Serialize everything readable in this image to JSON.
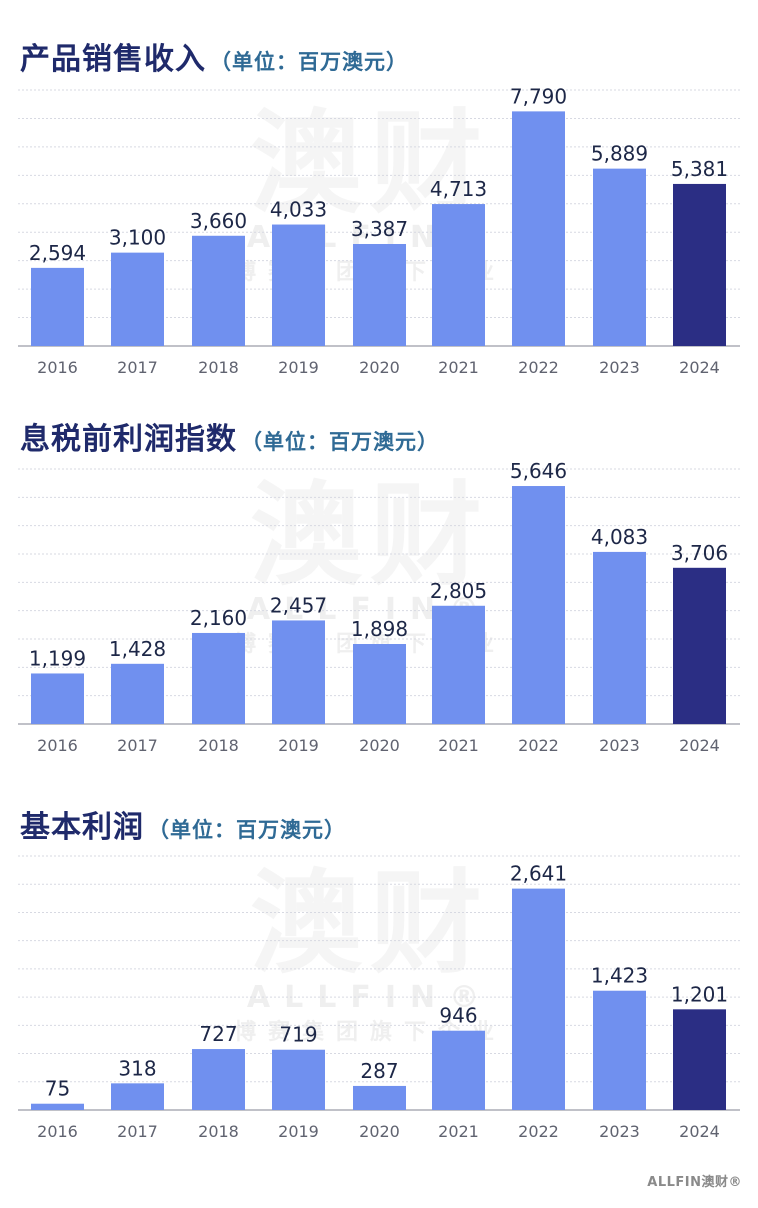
{
  "charts": [
    {
      "title": "产品销售收入",
      "unit": "（单位：百万澳元）",
      "chart_data": {
        "type": "bar",
        "title": "产品销售收入（单位：百万澳元）",
        "categories": [
          "2016",
          "2017",
          "2018",
          "2019",
          "2020",
          "2021",
          "2022",
          "2023",
          "2024"
        ],
        "values": [
          2594,
          3100,
          3660,
          4033,
          3387,
          4713,
          7790,
          5889,
          5381
        ],
        "value_labels": [
          "2,594",
          "3,100",
          "3,660",
          "4,033",
          "3,387",
          "4,713",
          "7,790",
          "5,889",
          "5,381"
        ],
        "ylim": [
          0,
          8500
        ],
        "grid": true,
        "xlabel": "",
        "ylabel": ""
      }
    },
    {
      "title": "息税前利润指数",
      "unit": "（单位：百万澳元）",
      "chart_data": {
        "type": "bar",
        "title": "息税前利润指数（单位：百万澳元）",
        "categories": [
          "2016",
          "2017",
          "2018",
          "2019",
          "2020",
          "2021",
          "2022",
          "2023",
          "2024"
        ],
        "values": [
          1199,
          1428,
          2160,
          2457,
          1898,
          2805,
          5646,
          4083,
          3706
        ],
        "value_labels": [
          "1,199",
          "1,428",
          "2,160",
          "2,457",
          "1,898",
          "2,805",
          "5,646",
          "4,083",
          "3,706"
        ],
        "ylim": [
          0,
          6050
        ],
        "grid": true,
        "xlabel": "",
        "ylabel": ""
      }
    },
    {
      "title": "基本利润",
      "unit": "（单位：百万澳元）",
      "chart_data": {
        "type": "bar",
        "title": "基本利润（单位：百万澳元）",
        "categories": [
          "2016",
          "2017",
          "2018",
          "2019",
          "2020",
          "2021",
          "2022",
          "2023",
          "2024"
        ],
        "values": [
          75,
          318,
          727,
          719,
          287,
          946,
          2641,
          1423,
          1201
        ],
        "value_labels": [
          "75",
          "318",
          "727",
          "719",
          "287",
          "946",
          "2,641",
          "1,423",
          "1,201"
        ],
        "ylim": [
          0,
          3030
        ],
        "grid": true,
        "xlabel": "",
        "ylabel": ""
      }
    }
  ],
  "colors": {
    "bar": "#7090ef",
    "bar_highlight": "#2b2e84",
    "grid": "#d7d9e2",
    "axis": "#9a9ca8",
    "value_label": "#1d2747",
    "tick_label": "#606370"
  },
  "watermark": {
    "big": "澳财",
    "mid": "ALLFIN®",
    "small": "博赛集团旗下企业"
  },
  "footer": {
    "logo_text": "ALLFIN澳财®"
  }
}
